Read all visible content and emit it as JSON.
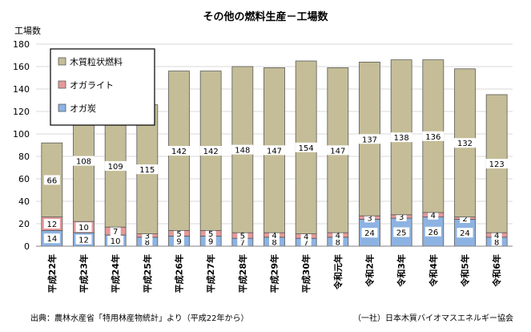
{
  "chart_data": {
    "type": "bar",
    "stacked": true,
    "title": "その他の燃料生産－工場数",
    "ylabel": "工場数",
    "xlabel": "",
    "ylim": [
      0,
      180
    ],
    "yticks": [
      0,
      20,
      40,
      60,
      80,
      100,
      120,
      140,
      160,
      180
    ],
    "grid": true,
    "legend_position": "top-left",
    "categories": [
      "平成22年",
      "平成23年",
      "平成24年",
      "平成25年",
      "平成26年",
      "平成27年",
      "平成28年",
      "平成29年",
      "平成30年",
      "令和元年",
      "令和2年",
      "令和3年",
      "令和4年",
      "令和5年",
      "令和6年"
    ],
    "series": [
      {
        "name": "オガ炭",
        "color": "#8db3e2",
        "values": [
          14,
          12,
          10,
          8,
          9,
          9,
          7,
          8,
          7,
          8,
          24,
          25,
          26,
          24,
          8
        ]
      },
      {
        "name": "オガライト",
        "color": "#e6999a",
        "values": [
          12,
          10,
          7,
          3,
          5,
          5,
          5,
          4,
          4,
          4,
          3,
          3,
          4,
          2,
          4
        ]
      },
      {
        "name": "木質粒状燃料",
        "color": "#c4bd97",
        "values": [
          66,
          108,
          109,
          115,
          142,
          142,
          148,
          147,
          154,
          147,
          137,
          138,
          136,
          132,
          123
        ]
      }
    ],
    "legend_order": [
      "木質粒状燃料",
      "オガライト",
      "オガ炭"
    ]
  },
  "footer": {
    "source": "出典：農林水産省「特用林産物統計」より（平成22年から）",
    "credit": "（一社）日本木質バイオマスエネルギー協会"
  }
}
